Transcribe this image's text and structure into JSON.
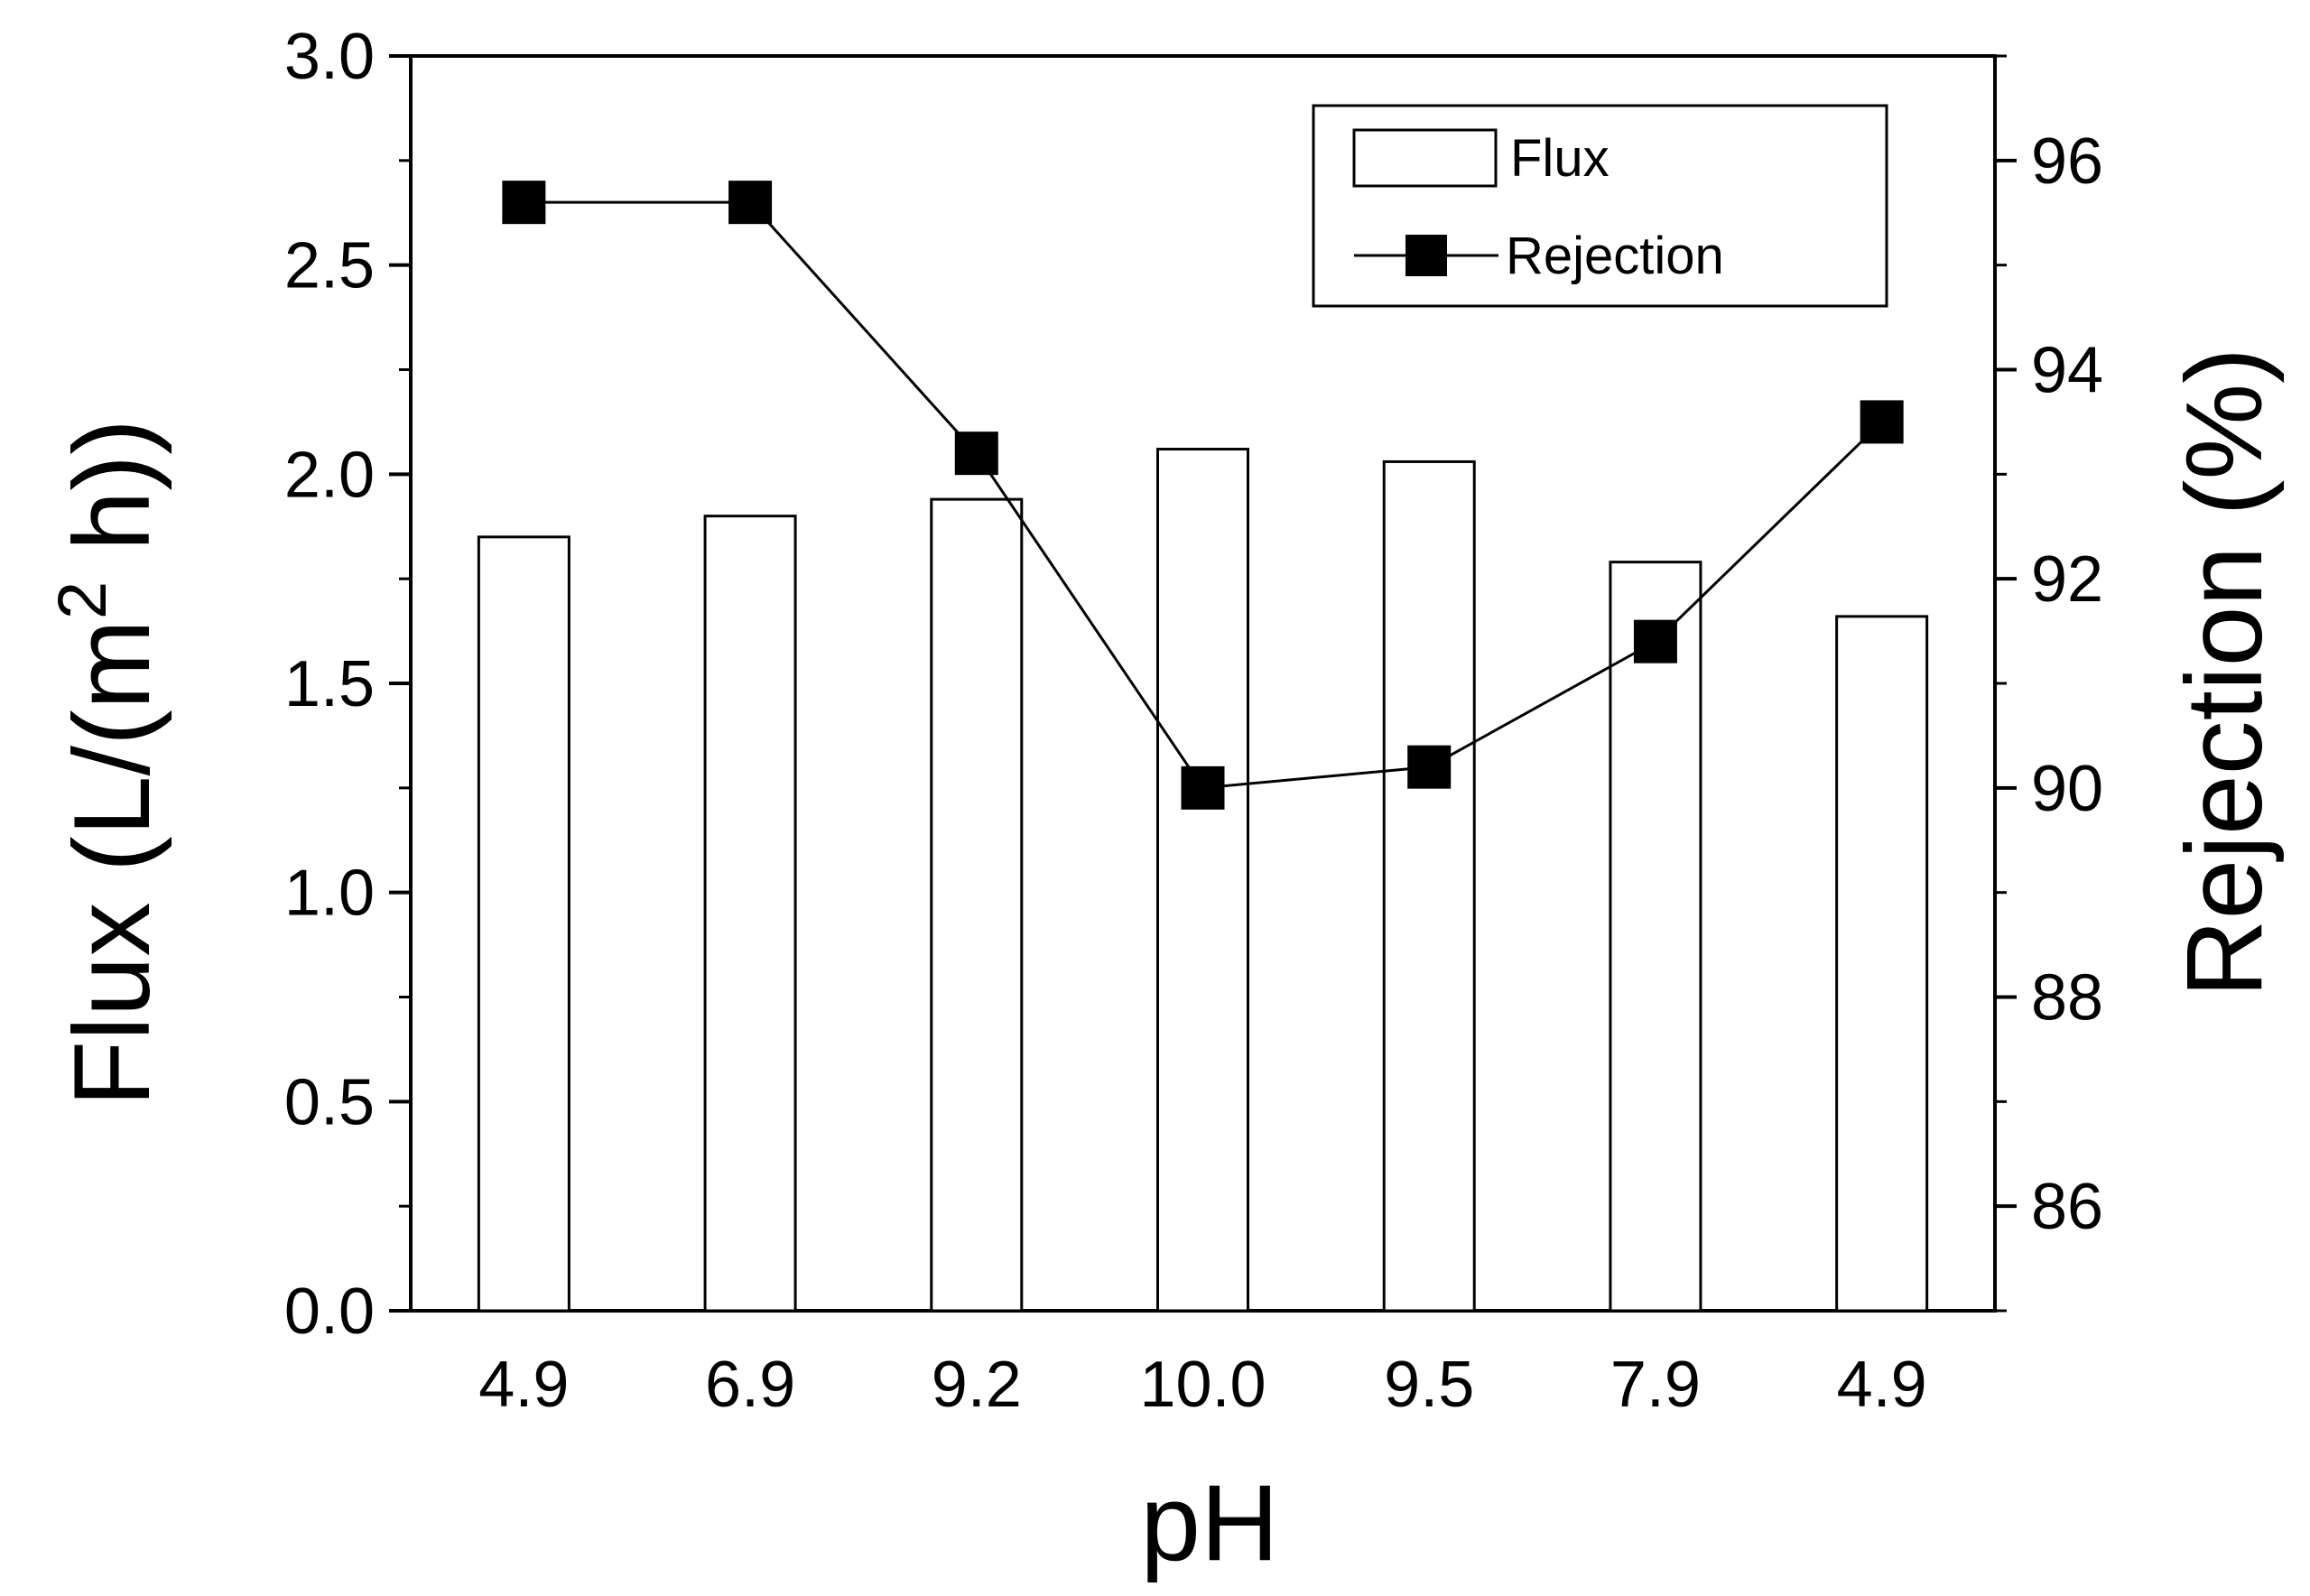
{
  "chart_data": {
    "type": "bar+line",
    "title": "",
    "xlabel": "pH",
    "ylabel_left": "Flux (L/(m2 h))",
    "ylabel_left_parts": {
      "before": "Flux (L/(m",
      "sup": "2",
      "after": " h))"
    },
    "ylabel_right": "Rejection (%)",
    "categories": [
      "4.9",
      "6.9",
      "9.2",
      "10.0",
      "9.5",
      "7.9",
      "4.9"
    ],
    "left_ylim": [
      0,
      3.0
    ],
    "left_ticks": [
      "0.0",
      "0.5",
      "1.0",
      "1.5",
      "2.0",
      "2.5",
      "3.0"
    ],
    "right_ylim": [
      85,
      97
    ],
    "right_ticks": [
      "86",
      "88",
      "90",
      "92",
      "94",
      "96"
    ],
    "series": [
      {
        "name": "Flux",
        "type": "bar",
        "axis": "left",
        "values": [
          1.85,
          1.9,
          1.94,
          2.06,
          2.03,
          1.79,
          1.66
        ]
      },
      {
        "name": "Rejection",
        "type": "line",
        "marker": "square",
        "axis": "right",
        "values": [
          95.6,
          95.6,
          93.2,
          90.0,
          90.2,
          91.4,
          93.5
        ]
      }
    ],
    "legend": {
      "position": "top-right",
      "entries": [
        "Flux",
        "Rejection"
      ]
    },
    "grid": false
  }
}
